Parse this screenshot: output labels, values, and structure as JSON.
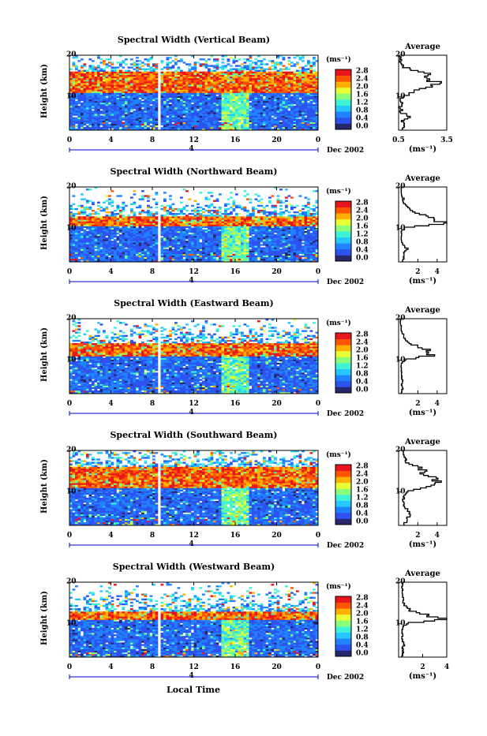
{
  "figure": {
    "xlabel": "Local Time",
    "date_label": "Dec 2002",
    "day_label": "4",
    "height_label": "Height (km)",
    "unit_label": "(ms⁻¹)",
    "average_label": "Average",
    "avg_unit_label": "(ms⁻¹)"
  },
  "colorbar": {
    "ticks": [
      "2.8",
      "2.4",
      "2.0",
      "1.6",
      "1.2",
      "0.8",
      "0.4",
      "0.0"
    ],
    "colors": [
      "#26266b",
      "#2d52f0",
      "#1f82ff",
      "#26c6ff",
      "#3ef2d4",
      "#8cff7a",
      "#e7ff35",
      "#ffb000",
      "#ff5400",
      "#e8141e"
    ]
  },
  "chart_data": [
    {
      "type": "heatmap",
      "title": "Spectral Width (Vertical Beam)",
      "xlabel": "Local Time",
      "ylabel": "Height (km)",
      "x_ticks": [
        "0",
        "4",
        "8",
        "12",
        "16",
        "20",
        "0"
      ],
      "y_ticks": [
        "10",
        "20"
      ],
      "xlim": [
        0,
        24
      ],
      "ylim": [
        2,
        20
      ],
      "colorbar_range": [
        0.0,
        2.8
      ],
      "data_gap_hours": [
        8.6,
        8.9
      ],
      "enhanced_layer_km": [
        11,
        16
      ],
      "average_profile": {
        "title": "Average",
        "xlabel": "(ms⁻¹)",
        "x_ticks": [
          "0.5",
          "3.5"
        ],
        "xlim": [
          0.5,
          3.5
        ],
        "y_ticks": [
          "10",
          "20"
        ],
        "height_km": [
          2,
          3,
          4,
          5,
          6,
          7,
          8,
          9,
          10,
          11,
          12,
          13,
          14,
          15,
          16,
          17,
          18,
          19,
          20
        ],
        "width_ms": [
          0.7,
          0.9,
          0.6,
          1.1,
          0.7,
          0.6,
          0.6,
          0.7,
          0.8,
          1.4,
          2.1,
          2.6,
          2.9,
          2.4,
          1.6,
          0.9,
          0.7,
          0.6,
          0.6
        ]
      }
    },
    {
      "type": "heatmap",
      "title": "Spectral Width (Northward Beam)",
      "xlabel": "Local Time",
      "ylabel": "Height (km)",
      "x_ticks": [
        "0",
        "4",
        "8",
        "12",
        "16",
        "20",
        "0"
      ],
      "y_ticks": [
        "10",
        "20"
      ],
      "xlim": [
        0,
        24
      ],
      "ylim": [
        2,
        20
      ],
      "colorbar_range": [
        0.0,
        2.8
      ],
      "data_gap_hours": [
        8.6,
        8.9
      ],
      "enhanced_layer_km": [
        10.5,
        13
      ],
      "average_profile": {
        "title": "Average",
        "xlabel": "(ms⁻¹)",
        "x_ticks": [
          "2",
          "4"
        ],
        "xlim": [
          0,
          5
        ],
        "y_ticks": [
          "10",
          "20"
        ],
        "height_km": [
          2,
          3,
          4,
          5,
          6,
          7,
          8,
          9,
          10,
          11,
          12,
          13,
          14,
          15,
          16,
          17,
          18,
          19,
          20
        ],
        "width_ms": [
          0.4,
          0.6,
          0.5,
          0.9,
          0.5,
          0.3,
          0.3,
          0.3,
          0.6,
          4.6,
          3.6,
          2.4,
          1.5,
          0.8,
          0.5,
          0.5,
          0.3,
          0.3,
          0.3
        ]
      }
    },
    {
      "type": "heatmap",
      "title": "Spectral Width (Eastward Beam)",
      "xlabel": "Local Time",
      "ylabel": "Height (km)",
      "x_ticks": [
        "0",
        "4",
        "8",
        "12",
        "16",
        "20",
        "0"
      ],
      "y_ticks": [
        "10",
        "20"
      ],
      "xlim": [
        0,
        24
      ],
      "ylim": [
        2,
        20
      ],
      "colorbar_range": [
        0.0,
        2.8
      ],
      "data_gap_hours": [
        8.6,
        8.9
      ],
      "enhanced_layer_km": [
        11,
        14
      ],
      "average_profile": {
        "title": "Average",
        "xlabel": "(ms⁻¹)",
        "x_ticks": [
          "2",
          "4"
        ],
        "xlim": [
          0,
          5
        ],
        "y_ticks": [
          "10",
          "20"
        ],
        "height_km": [
          2,
          3,
          4,
          5,
          6,
          7,
          8,
          9,
          10,
          11,
          12,
          13,
          14,
          15,
          16,
          17,
          18,
          19,
          20
        ],
        "width_ms": [
          0.3,
          0.4,
          0.3,
          0.4,
          0.3,
          0.3,
          0.3,
          0.3,
          0.7,
          3.6,
          3.1,
          2.2,
          1.3,
          0.7,
          0.5,
          0.3,
          0.3,
          0.2,
          0.2
        ]
      }
    },
    {
      "type": "heatmap",
      "title": "Spectral Width (Southward Beam)",
      "xlabel": "Local Time",
      "ylabel": "Height (km)",
      "x_ticks": [
        "0",
        "4",
        "8",
        "12",
        "16",
        "20",
        "0"
      ],
      "y_ticks": [
        "10",
        "20"
      ],
      "xlim": [
        0,
        24
      ],
      "ylim": [
        2,
        20
      ],
      "colorbar_range": [
        0.0,
        2.8
      ],
      "data_gap_hours": [
        8.6,
        8.9
      ],
      "enhanced_layer_km": [
        11,
        16
      ],
      "average_profile": {
        "title": "Average",
        "xlabel": "(ms⁻¹)",
        "x_ticks": [
          "2",
          "4"
        ],
        "xlim": [
          0,
          5
        ],
        "y_ticks": [
          "10",
          "20"
        ],
        "height_km": [
          2,
          3,
          4,
          5,
          6,
          7,
          8,
          9,
          10,
          11,
          12,
          13,
          14,
          15,
          16,
          17,
          18,
          19,
          20
        ],
        "width_ms": [
          0.5,
          0.9,
          1.1,
          1.2,
          0.8,
          0.5,
          0.5,
          0.6,
          1.0,
          3.0,
          4.1,
          3.6,
          2.9,
          2.5,
          1.8,
          0.9,
          0.6,
          0.5,
          0.5
        ]
      }
    },
    {
      "type": "heatmap",
      "title": "Spectral Width (Westward Beam)",
      "xlabel": "Local Time",
      "ylabel": "Height (km)",
      "x_ticks": [
        "0",
        "4",
        "8",
        "12",
        "16",
        "20",
        "0"
      ],
      "y_ticks": [
        "10",
        "20"
      ],
      "xlim": [
        0,
        24
      ],
      "ylim": [
        2,
        20
      ],
      "colorbar_range": [
        0.0,
        2.8
      ],
      "data_gap_hours": [
        8.6,
        8.9
      ],
      "enhanced_layer_km": [
        11,
        13
      ],
      "average_profile": {
        "title": "Average",
        "xlabel": "(ms⁻¹)",
        "x_ticks": [
          "2",
          "4"
        ],
        "xlim": [
          0,
          4
        ],
        "y_ticks": [
          "10",
          "20"
        ],
        "height_km": [
          2,
          3,
          4,
          5,
          6,
          7,
          8,
          9,
          10,
          11,
          12,
          13,
          14,
          15,
          16,
          17,
          18,
          19,
          20
        ],
        "width_ms": [
          0.3,
          0.4,
          0.3,
          0.5,
          0.3,
          0.3,
          0.3,
          0.3,
          0.8,
          3.8,
          2.2,
          1.0,
          0.6,
          0.4,
          0.4,
          0.3,
          0.3,
          0.3,
          0.3
        ]
      }
    }
  ]
}
